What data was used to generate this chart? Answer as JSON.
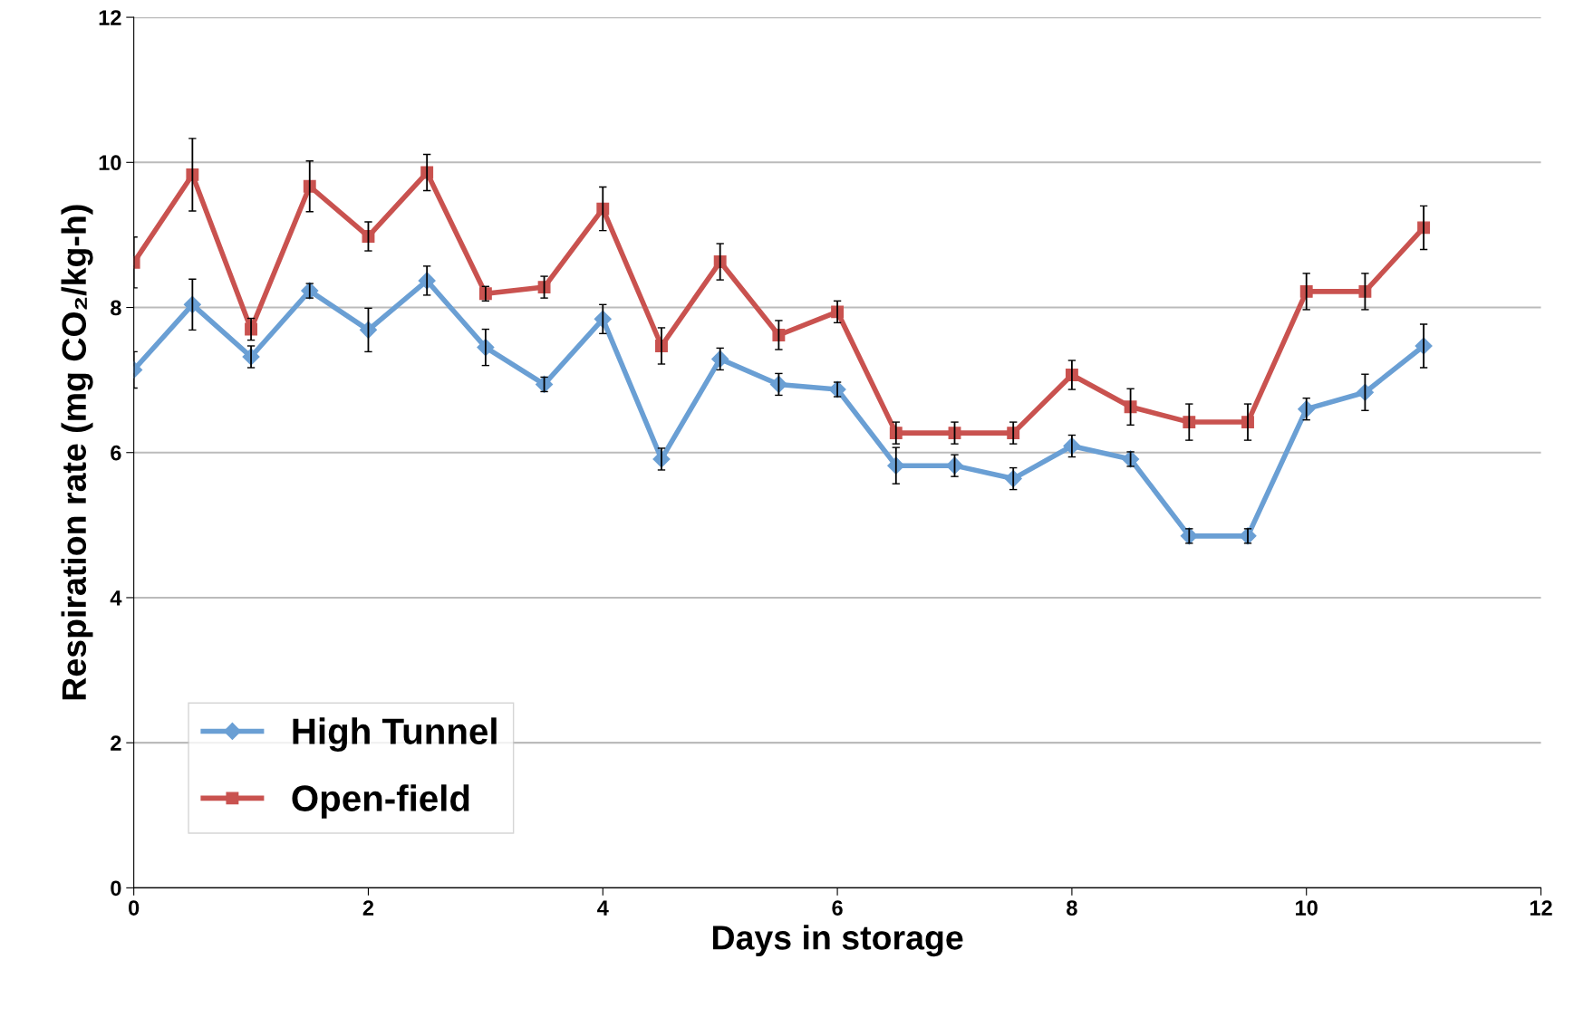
{
  "chart_data": {
    "type": "line",
    "xlabel": "Days in storage",
    "ylabel": "Respiration rate (mg CO₂/kg-h)",
    "x": [
      0,
      0.5,
      1,
      1.5,
      2,
      2.5,
      3,
      3.5,
      4,
      4.5,
      5,
      5.5,
      6,
      6.5,
      7,
      7.5,
      8,
      8.5,
      9,
      9.5,
      10,
      10.5,
      11
    ],
    "series": [
      {
        "name": "High Tunnel",
        "color": "#6a9fd4",
        "marker": "diamond",
        "values": [
          7.14,
          8.04,
          7.32,
          8.23,
          7.69,
          8.37,
          7.45,
          6.94,
          7.84,
          5.91,
          7.29,
          6.94,
          6.87,
          5.82,
          5.82,
          5.64,
          6.09,
          5.91,
          4.85,
          4.85,
          6.6,
          6.83,
          7.47
        ],
        "errors": [
          0.25,
          0.35,
          0.15,
          0.1,
          0.3,
          0.2,
          0.25,
          0.1,
          0.2,
          0.15,
          0.15,
          0.15,
          0.1,
          0.25,
          0.15,
          0.15,
          0.15,
          0.1,
          0.1,
          0.1,
          0.15,
          0.25,
          0.3
        ]
      },
      {
        "name": "Open-field",
        "color": "#c9524f",
        "marker": "square",
        "values": [
          8.62,
          9.83,
          7.7,
          9.67,
          8.98,
          9.86,
          8.19,
          8.28,
          9.36,
          7.47,
          8.63,
          7.62,
          7.94,
          6.27,
          6.27,
          6.27,
          7.07,
          6.63,
          6.42,
          6.42,
          8.22,
          8.22,
          9.1
        ],
        "errors": [
          0.35,
          0.5,
          0.15,
          0.35,
          0.2,
          0.25,
          0.1,
          0.15,
          0.3,
          0.25,
          0.25,
          0.2,
          0.15,
          0.15,
          0.15,
          0.15,
          0.2,
          0.25,
          0.25,
          0.25,
          0.25,
          0.25,
          0.3
        ]
      }
    ],
    "xlim": [
      0,
      12
    ],
    "xticks": [
      0,
      2,
      4,
      6,
      8,
      10,
      12
    ],
    "ylim": [
      0,
      12
    ],
    "yticks": [
      0,
      2,
      4,
      6,
      8,
      10,
      12
    ],
    "grid": "y",
    "legend": "bottom left",
    "line_style": "solid"
  }
}
